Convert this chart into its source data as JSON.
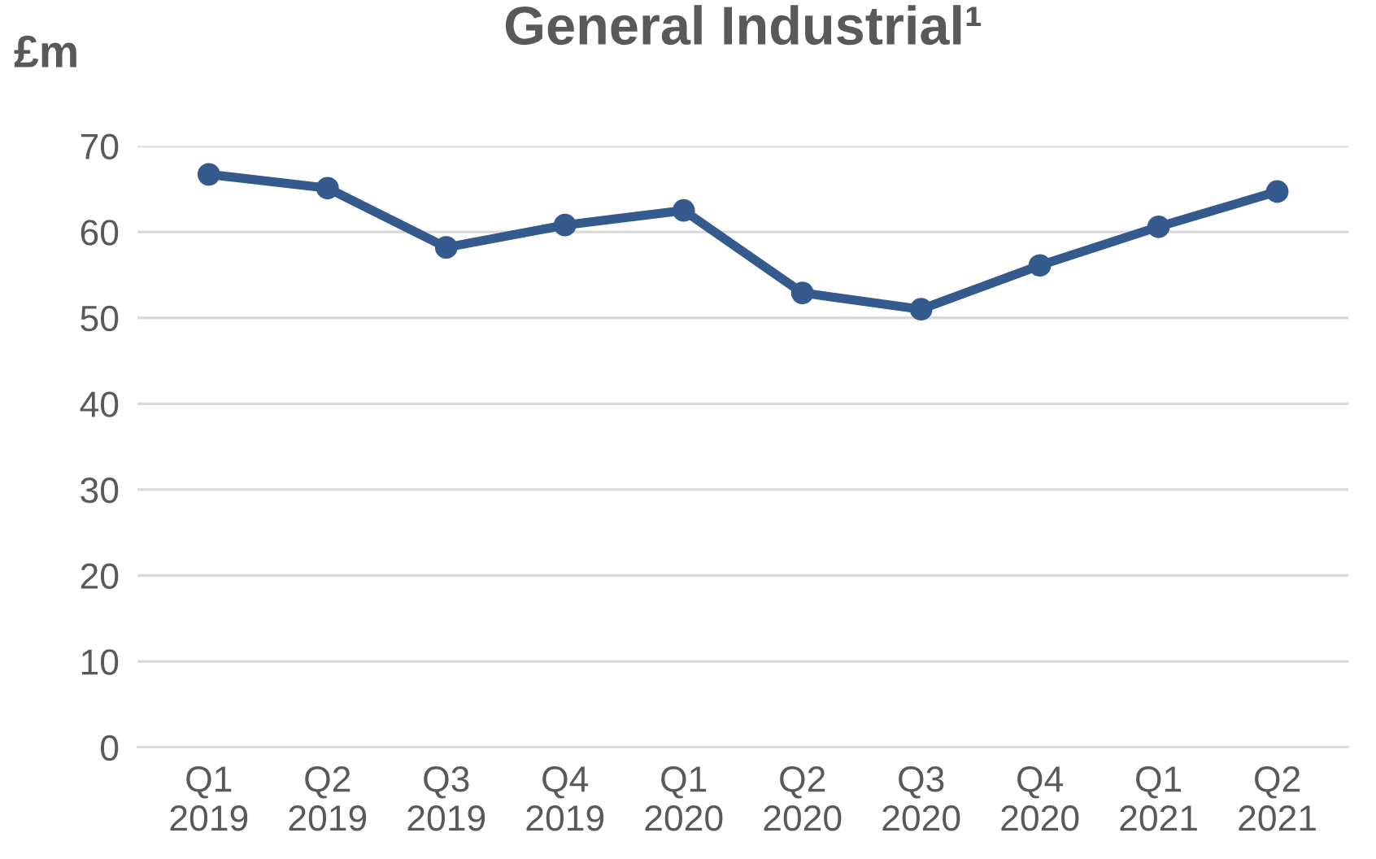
{
  "chart_data": {
    "type": "line",
    "title": "General Industrial¹",
    "ylabel": "£m",
    "categories": [
      "Q1\n2019",
      "Q2\n2019",
      "Q3\n2019",
      "Q4\n2019",
      "Q1\n2020",
      "Q2\n2020",
      "Q3\n2020",
      "Q4\n2020",
      "Q1\n2021",
      "Q2\n2021"
    ],
    "series": [
      {
        "color": "#345a8e",
        "values": [
          66.7,
          65.1,
          58.2,
          60.8,
          62.5,
          52.9,
          51.0,
          56.1,
          60.6,
          64.7
        ]
      }
    ],
    "ylim": [
      0,
      70
    ],
    "yticks": [
      0,
      10,
      20,
      30,
      40,
      50,
      60,
      70
    ],
    "grid": "y",
    "marker": "circle",
    "line_style": "solid"
  }
}
